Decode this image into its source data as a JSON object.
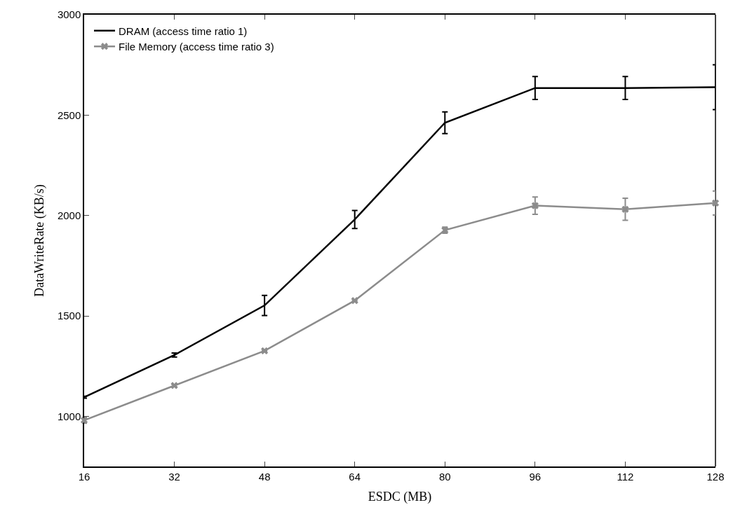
{
  "chart_data": {
    "type": "line",
    "xlabel": "ESDC (MB)",
    "ylabel": "DataWriteRate (KB/s)",
    "x": [
      16,
      32,
      48,
      64,
      80,
      96,
      112,
      128
    ],
    "series": [
      {
        "name": "DRAM (access time ratio 1)",
        "color": "#000000",
        "marker": "none",
        "values": [
          1095,
          1305,
          1552,
          1980,
          2462,
          2635,
          2635,
          2639
        ],
        "errors": [
          5,
          10,
          50,
          45,
          54,
          57,
          57,
          112
        ]
      },
      {
        "name": "File Memory (access time ratio 3)",
        "color": "#8c8c8c",
        "marker": "cross",
        "values": [
          980,
          1153,
          1326,
          1576,
          1927,
          2049,
          2031,
          2062
        ],
        "errors": [
          15,
          5,
          null,
          null,
          15,
          43,
          55,
          60
        ]
      }
    ],
    "xlim": [
      16,
      128
    ],
    "xticks": [
      16,
      32,
      48,
      64,
      80,
      96,
      112,
      128
    ],
    "ylim": [
      750,
      3000
    ],
    "yticks": [
      1000,
      1500,
      2000,
      2500,
      3000
    ],
    "legend": "top left"
  }
}
